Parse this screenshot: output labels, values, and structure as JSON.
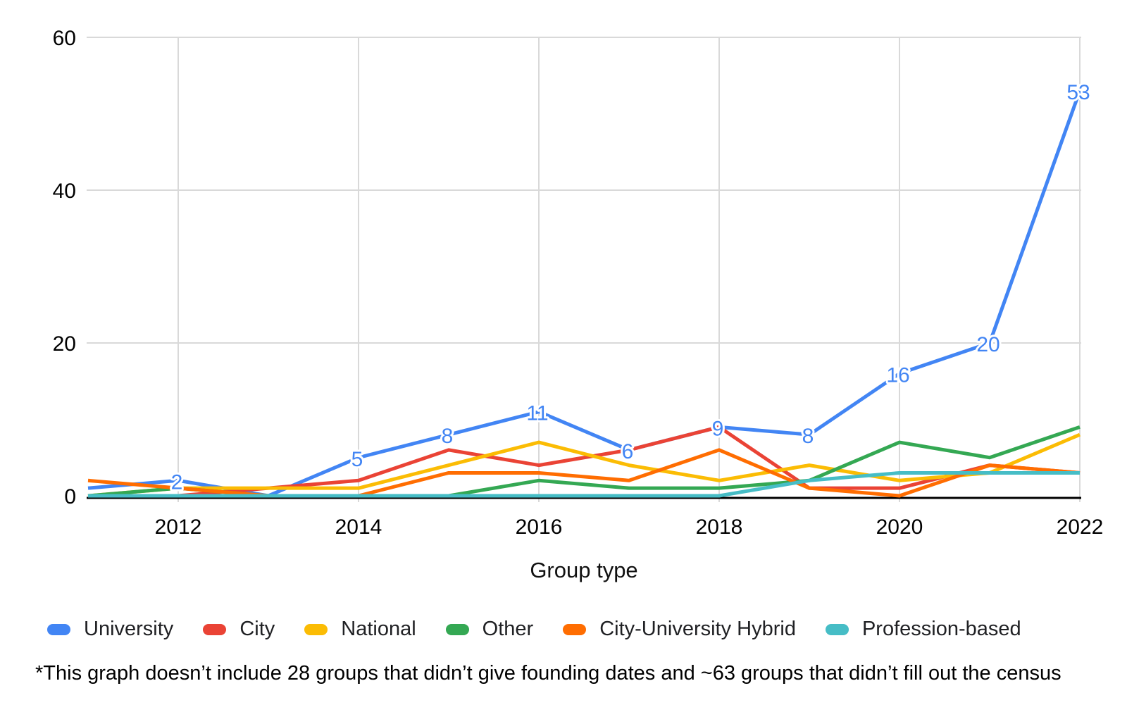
{
  "chart_data": {
    "type": "line",
    "title": "",
    "xlabel": "Group type",
    "ylabel": "",
    "x": [
      2011,
      2012,
      2013,
      2014,
      2015,
      2016,
      2017,
      2018,
      2019,
      2020,
      2021,
      2022
    ],
    "x_ticks": [
      2012,
      2014,
      2016,
      2018,
      2020,
      2022
    ],
    "ylim": [
      0,
      60
    ],
    "y_ticks": [
      0,
      20,
      40,
      60
    ],
    "grid": true,
    "legend_position": "bottom",
    "series": [
      {
        "name": "University",
        "color": "#4285F4",
        "values": [
          1,
          2,
          0,
          5,
          8,
          11,
          6,
          9,
          8,
          16,
          20,
          53
        ],
        "point_labels": [
          "",
          "2",
          "",
          "5",
          "8",
          "11",
          "6",
          "9",
          "8",
          "16",
          "20",
          "53"
        ]
      },
      {
        "name": "City",
        "color": "#EA4335",
        "values": [
          0,
          0,
          1,
          2,
          6,
          4,
          6,
          9,
          1,
          1,
          4,
          3
        ]
      },
      {
        "name": "National",
        "color": "#FBBC04",
        "values": [
          0,
          1,
          1,
          1,
          4,
          7,
          4,
          2,
          4,
          2,
          3,
          8
        ]
      },
      {
        "name": "Other",
        "color": "#34A853",
        "values": [
          0,
          1,
          0,
          0,
          0,
          2,
          1,
          1,
          2,
          7,
          5,
          9
        ]
      },
      {
        "name": "City-University Hybrid",
        "color": "#FF6D01",
        "values": [
          2,
          1,
          0,
          0,
          3,
          3,
          2,
          6,
          1,
          0,
          4,
          3
        ]
      },
      {
        "name": "Profession-based",
        "color": "#46BDC6",
        "values": [
          0,
          0,
          0,
          0,
          0,
          0,
          0,
          0,
          2,
          3,
          3,
          3
        ]
      }
    ],
    "axis_colors": {
      "gridline": "#D9D9D9",
      "baseline": "#000000",
      "tick_text": "#000000",
      "point_label": "#4285F4"
    }
  },
  "footnote": "*This graph doesn’t include 28 groups that didn’t give founding dates and ~63 groups that didn’t fill out the census"
}
